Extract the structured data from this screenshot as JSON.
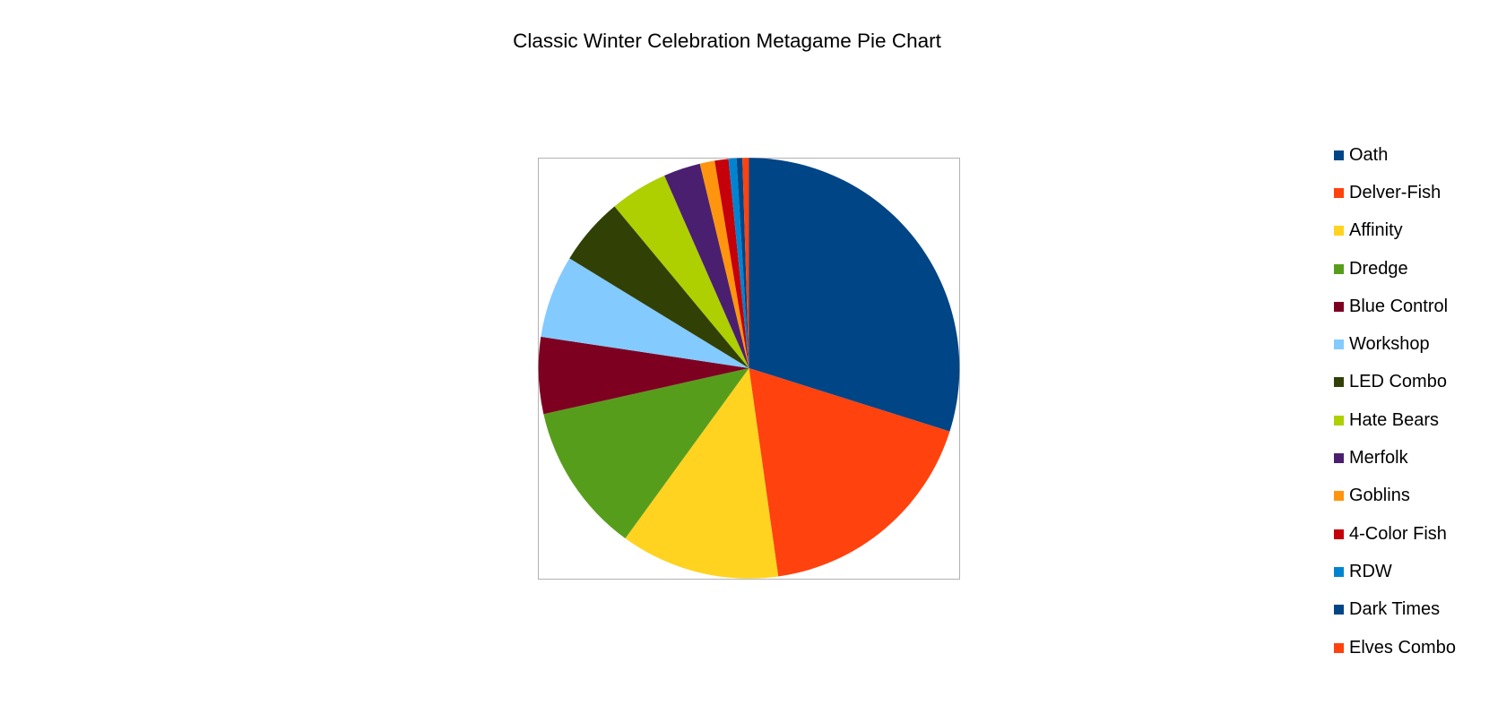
{
  "title": "Classic Winter Celebration Metagame Pie Chart",
  "chart_data": {
    "type": "pie",
    "title": "Classic Winter Celebration Metagame Pie Chart",
    "legend_position": "right",
    "start_angle": "12 o'clock, clockwise",
    "grid": false,
    "categories": [
      "Oath",
      "Delver-Fish",
      "Affinity",
      "Dredge",
      "Blue Control",
      "Workshop",
      "LED Combo",
      "Hate Bears",
      "Merfolk",
      "Goblins",
      "4-Color Fish",
      "RDW",
      "Dark Times",
      "Elves Combo"
    ],
    "values_percent": [
      29.9,
      17.9,
      12.2,
      11.5,
      5.9,
      6.4,
      5.2,
      4.4,
      2.8,
      1.1,
      1.1,
      0.6,
      0.4,
      0.5
    ],
    "segment_angles_deg": [
      107.5,
      64.5,
      44.0,
      41.4,
      21.2,
      22.9,
      18.8,
      16.0,
      10.2,
      4.1,
      3.8,
      2.2,
      1.6,
      1.8
    ],
    "colors": [
      "#004586",
      "#FF420E",
      "#FFD320",
      "#579D1C",
      "#7E0021",
      "#83CAFF",
      "#314004",
      "#AECF00",
      "#4B1F6F",
      "#FF950E",
      "#C5000B",
      "#0084D1",
      "#004586",
      "#FF420E"
    ]
  },
  "style_colors": {
    "background": "#ffffff",
    "text": "#000000",
    "plot_border": "#b2b2b2"
  }
}
